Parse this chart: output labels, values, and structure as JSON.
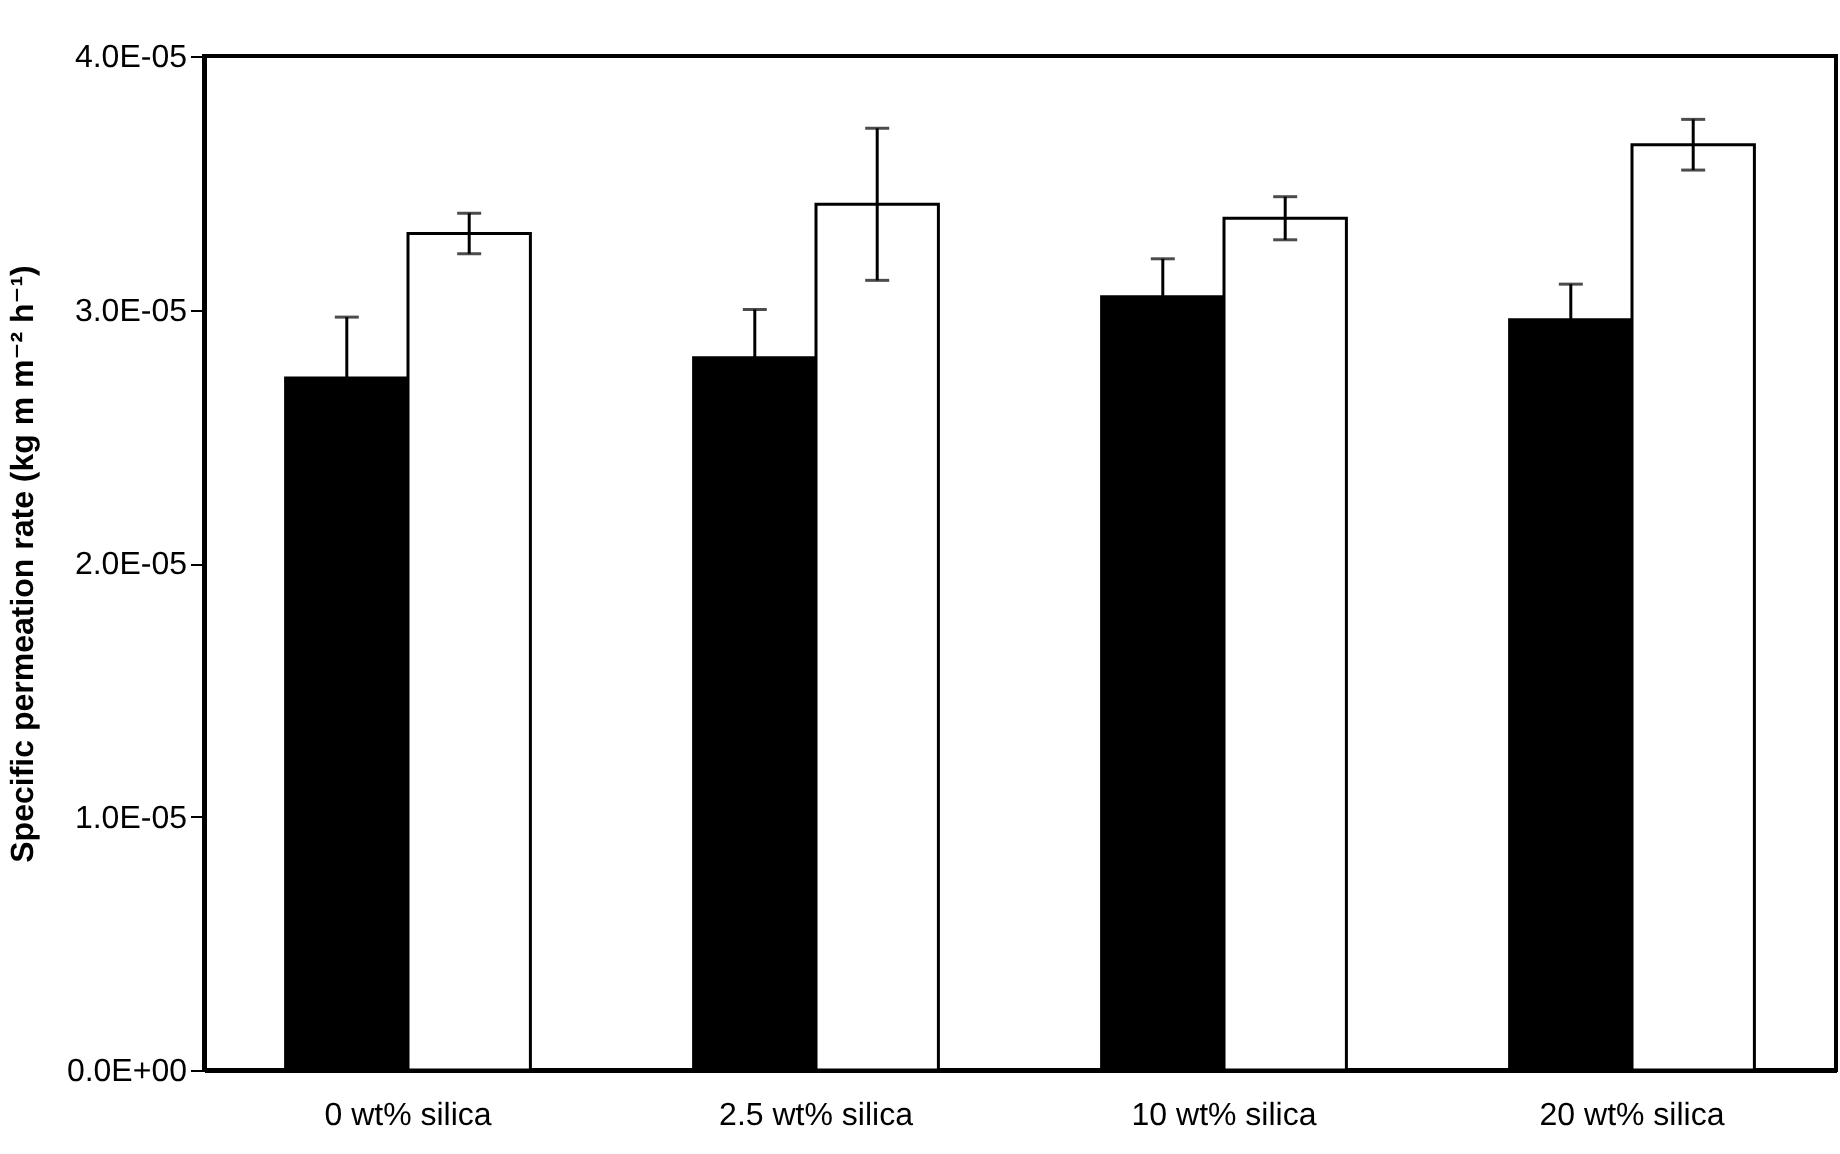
{
  "chart_data": {
    "type": "bar",
    "ylabel": "Specific permeation rate (kg m m⁻² h⁻¹)",
    "categories": [
      "0 wt% silica",
      "2.5 wt% silica",
      "10 wt% silica",
      "20 wt% silica"
    ],
    "series": [
      {
        "color": "#000000",
        "values": [
          2.73e-05,
          2.81e-05,
          3.05e-05,
          2.96e-05
        ],
        "errors": [
          2.4e-06,
          1.9e-06,
          1.5e-06,
          1.4e-06
        ]
      },
      {
        "color": "#ffffff",
        "values": [
          3.3e-05,
          3.415e-05,
          3.36e-05,
          3.65e-05
        ],
        "errors": [
          8e-07,
          3e-06,
          8.5e-07,
          1e-06
        ]
      }
    ],
    "ylim": [
      0,
      4e-05
    ],
    "yticks": [
      {
        "value": 0,
        "label": "0.0E+00"
      },
      {
        "value": 1e-05,
        "label": "1.0E-05"
      },
      {
        "value": 2e-05,
        "label": "2.0E-05"
      },
      {
        "value": 3e-05,
        "label": "3.0E-05"
      },
      {
        "value": 4e-05,
        "label": "4.0E-05"
      }
    ],
    "grid": false,
    "legend": false
  }
}
